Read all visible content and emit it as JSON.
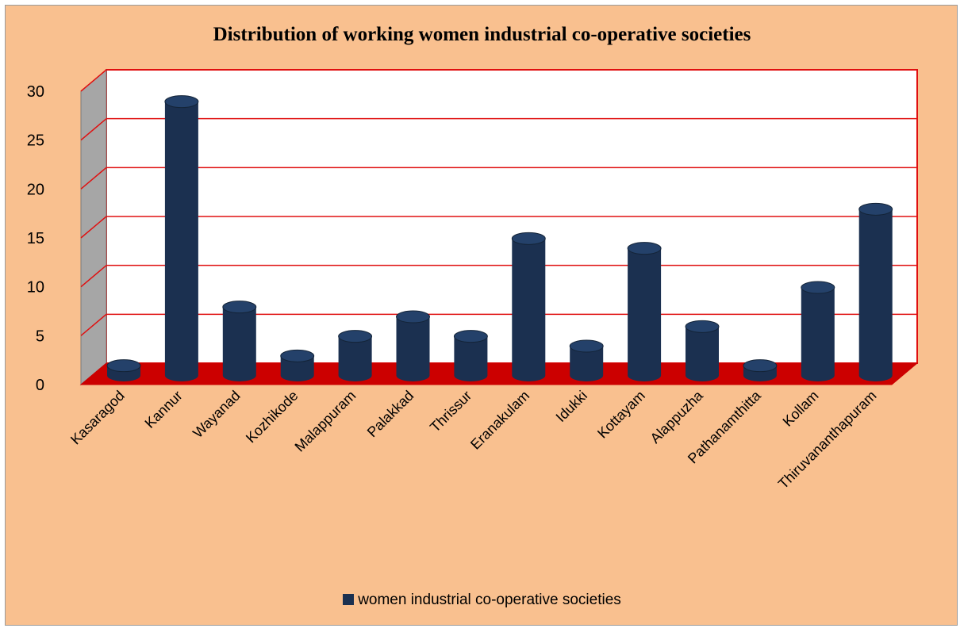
{
  "chart_data": {
    "type": "bar",
    "title": "Distribution of working women industrial co-operative societies",
    "xlabel": "",
    "ylabel": "",
    "categories": [
      "Kasaragod",
      "Kannur",
      "Wayanad",
      "Kozhikode",
      "Malappuram",
      "Palakkad",
      "Thrissur",
      "Eranakulam",
      "Idukki",
      "Kottayam",
      "Alappuzha",
      "Pathanamthitta",
      "Kollam",
      "Thiruvananthapuram"
    ],
    "series": [
      {
        "name": "women industrial co-operative societies",
        "values": [
          1,
          28,
          7,
          2,
          4,
          6,
          4,
          14,
          3,
          13,
          5,
          1,
          9,
          17
        ],
        "color": "#1b3050"
      }
    ],
    "yticks": [
      "0",
      "5",
      "10",
      "15",
      "20",
      "25",
      "30"
    ],
    "ylim": [
      0,
      30
    ],
    "grid": true,
    "legend_position": "bottom",
    "colors": {
      "background": "#f9c08f",
      "plot_wall": "#ffffff",
      "gridline": "#e01010",
      "floor": "#cc0000",
      "side_wall": "#a6a6a6"
    }
  }
}
